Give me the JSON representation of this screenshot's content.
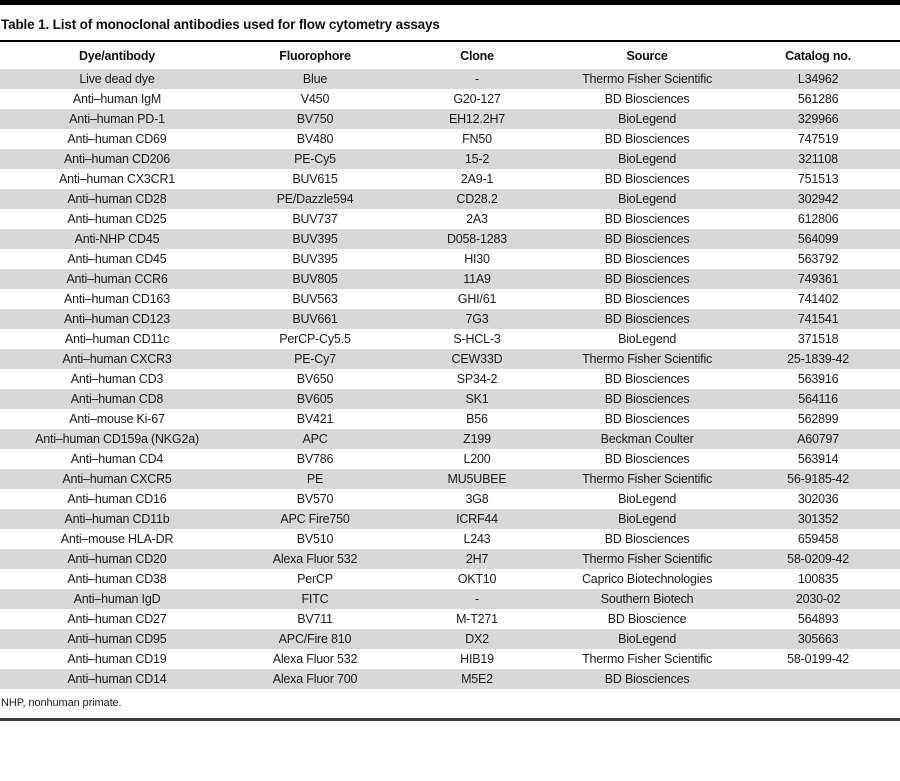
{
  "page": {
    "title": "Table 1. List of monoclonal antibodies used for flow cytometry assays",
    "footnote": "NHP, nonhuman primate."
  },
  "colors": {
    "stripe": "#d8d8d8",
    "text": "#1c1c1c",
    "top_bar": "#000000",
    "title_rule": "#000000",
    "bottom_rule": "#3d3d3d"
  },
  "table": {
    "columns": [
      "Dye/antibody",
      "Fluorophore",
      "Clone",
      "Source",
      "Catalog no."
    ],
    "rows": [
      [
        "Live dead dye",
        "Blue",
        "-",
        "Thermo Fisher Scientific",
        "L34962"
      ],
      [
        "Anti–human IgM",
        "V450",
        "G20-127",
        "BD Biosciences",
        "561286"
      ],
      [
        "Anti–human PD-1",
        "BV750",
        "EH12.2H7",
        "BioLegend",
        "329966"
      ],
      [
        "Anti–human CD69",
        "BV480",
        "FN50",
        "BD Biosciences",
        "747519"
      ],
      [
        "Anti–human CD206",
        "PE-Cy5",
        "15-2",
        "BioLegend",
        "321108"
      ],
      [
        "Anti–human CX3CR1",
        "BUV615",
        "2A9-1",
        "BD Biosciences",
        "751513"
      ],
      [
        "Anti–human CD28",
        "PE/Dazzle594",
        "CD28.2",
        "BioLegend",
        "302942"
      ],
      [
        "Anti–human CD25",
        "BUV737",
        "2A3",
        "BD Biosciences",
        "612806"
      ],
      [
        "Anti-NHP CD45",
        "BUV395",
        "D058-1283",
        "BD Biosciences",
        "564099"
      ],
      [
        "Anti–human CD45",
        "BUV395",
        "HI30",
        "BD Biosciences",
        "563792"
      ],
      [
        "Anti–human CCR6",
        "BUV805",
        "11A9",
        "BD Biosciences",
        "749361"
      ],
      [
        "Anti–human CD163",
        "BUV563",
        "GHI/61",
        "BD Biosciences",
        "741402"
      ],
      [
        "Anti–human CD123",
        "BUV661",
        "7G3",
        "BD Biosciences",
        "741541"
      ],
      [
        "Anti–human CD11c",
        "PerCP-Cy5.5",
        "S-HCL-3",
        "BioLegend",
        "371518"
      ],
      [
        "Anti–human CXCR3",
        "PE-Cy7",
        "CEW33D",
        "Thermo Fisher Scientific",
        "25-1839-42"
      ],
      [
        "Anti–human CD3",
        "BV650",
        "SP34-2",
        "BD Biosciences",
        "563916"
      ],
      [
        "Anti–human CD8",
        "BV605",
        "SK1",
        "BD Biosciences",
        "564116"
      ],
      [
        "Anti–mouse Ki-67",
        "BV421",
        "B56",
        "BD Biosciences",
        "562899"
      ],
      [
        "Anti–human CD159a (NKG2a)",
        "APC",
        "Z199",
        "Beckman Coulter",
        "A60797"
      ],
      [
        "Anti–human CD4",
        "BV786",
        "L200",
        "BD Biosciences",
        "563914"
      ],
      [
        "Anti–human CXCR5",
        "PE",
        "MU5UBEE",
        "Thermo Fisher Scientific",
        "56-9185-42"
      ],
      [
        "Anti–human CD16",
        "BV570",
        "3G8",
        "BioLegend",
        "302036"
      ],
      [
        "Anti–human CD11b",
        "APC Fire750",
        "ICRF44",
        "BioLegend",
        "301352"
      ],
      [
        "Anti–mouse HLA-DR",
        "BV510",
        "L243",
        "BD Biosciences",
        "659458"
      ],
      [
        "Anti–human CD20",
        "Alexa Fluor 532",
        "2H7",
        "Thermo Fisher Scientific",
        "58-0209-42"
      ],
      [
        "Anti–human CD38",
        "PerCP",
        "OKT10",
        "Caprico Biotechnologies",
        "100835"
      ],
      [
        "Anti–human IgD",
        "FITC",
        "-",
        "Southern Biotech",
        "2030-02"
      ],
      [
        "Anti–human CD27",
        "BV711",
        "M-T271",
        "BD Bioscience",
        "564893"
      ],
      [
        "Anti–human CD95",
        "APC/Fire 810",
        "DX2",
        "BioLegend",
        "305663"
      ],
      [
        "Anti–human CD19",
        "Alexa Fluor 532",
        "HIB19",
        "Thermo Fisher Scientific",
        "58-0199-42"
      ],
      [
        "Anti–human CD14",
        "Alexa Fluor 700",
        "M5E2",
        "BD Biosciences",
        ""
      ]
    ]
  }
}
